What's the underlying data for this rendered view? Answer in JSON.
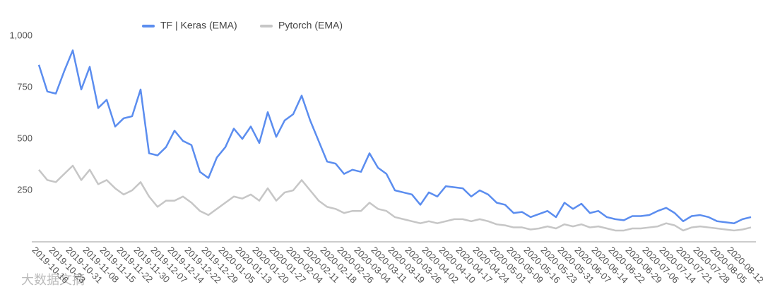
{
  "chart_data": {
    "type": "line",
    "categories": [
      "2019-10-16",
      null,
      "2019-10-23",
      null,
      "2019-10-31",
      null,
      "2019-11-08",
      null,
      "2019-11-15",
      null,
      "2019-11-22",
      null,
      "2019-11-30",
      null,
      "2019-12-07",
      null,
      "2019-12-14",
      null,
      "2019-12-22",
      null,
      "2019-12-29",
      null,
      "2020-01-05",
      null,
      "2020-01-13",
      null,
      "2020-01-20",
      null,
      "2020-01-27",
      null,
      "2020-02-04",
      null,
      "2020-02-11",
      null,
      "2020-02-18",
      null,
      "2020-02-26",
      null,
      "2020-03-04",
      null,
      "2020-03-11",
      null,
      "2020-03-19",
      null,
      "2020-03-26",
      null,
      "2020-04-02",
      null,
      "2020-04-10",
      null,
      "2020-04-17",
      null,
      "2020-04-24",
      null,
      "2020-05-01",
      null,
      "2020-05-09",
      null,
      "2020-05-16",
      null,
      "2020-05-23",
      null,
      "2020-05-31",
      null,
      "2020-06-07",
      null,
      "2020-06-14",
      null,
      "2020-06-22",
      null,
      "2020-06-29",
      null,
      "2020-07-06",
      null,
      "2020-07-14",
      null,
      "2020-07-21",
      null,
      "2020-07-28",
      null,
      "2020-08-05",
      null,
      "2020-08-12",
      null,
      null
    ],
    "series": [
      {
        "name": "TF | Keras (EMA)",
        "color": "#5b8def",
        "values": [
          860,
          730,
          720,
          830,
          930,
          740,
          850,
          650,
          690,
          560,
          600,
          610,
          740,
          430,
          420,
          460,
          540,
          490,
          470,
          340,
          310,
          410,
          460,
          550,
          500,
          560,
          480,
          630,
          510,
          590,
          620,
          710,
          590,
          490,
          390,
          380,
          330,
          350,
          340,
          430,
          360,
          330,
          250,
          240,
          230,
          180,
          240,
          220,
          270,
          265,
          260,
          220,
          250,
          230,
          190,
          180,
          140,
          145,
          120,
          135,
          150,
          120,
          190,
          160,
          185,
          140,
          150,
          120,
          110,
          105,
          125,
          125,
          130,
          150,
          165,
          140,
          100,
          125,
          130,
          120,
          100,
          95,
          90,
          110,
          120
        ]
      },
      {
        "name": "Pytorch (EMA)",
        "color": "#c6c6c6",
        "values": [
          350,
          300,
          290,
          330,
          370,
          300,
          350,
          280,
          300,
          260,
          230,
          250,
          290,
          220,
          170,
          200,
          200,
          220,
          190,
          150,
          130,
          160,
          190,
          220,
          210,
          230,
          200,
          260,
          200,
          240,
          250,
          300,
          250,
          200,
          170,
          160,
          140,
          150,
          150,
          190,
          160,
          150,
          120,
          110,
          100,
          90,
          100,
          90,
          100,
          110,
          110,
          100,
          110,
          100,
          85,
          80,
          70,
          70,
          60,
          65,
          75,
          65,
          85,
          75,
          85,
          70,
          75,
          65,
          55,
          55,
          65,
          65,
          70,
          75,
          90,
          80,
          55,
          70,
          75,
          70,
          65,
          60,
          55,
          60,
          70
        ]
      }
    ],
    "ylim": [
      0,
      1000
    ],
    "yticks": [
      250,
      500,
      750,
      {
        "value": 1000,
        "label": "1,000"
      }
    ],
    "legend": "top",
    "watermark": "大数据文摘"
  }
}
